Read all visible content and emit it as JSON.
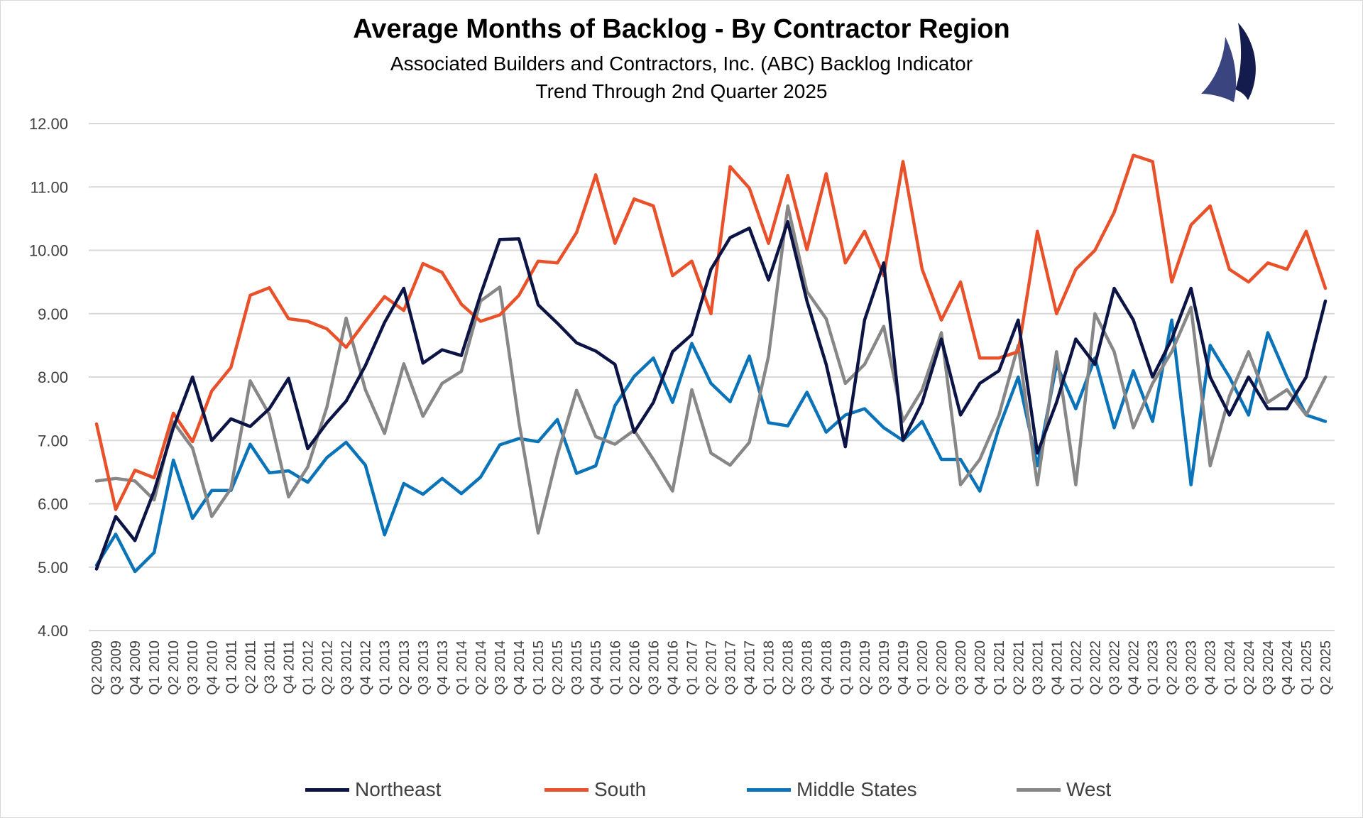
{
  "chart_data": {
    "type": "line",
    "title": "Average Months of Backlog - By Contractor Region",
    "subtitle_lines": [
      "Associated Builders and Contractors, Inc. (ABC) Backlog Indicator",
      "Trend Through 2nd Quarter 2025"
    ],
    "xlabel": "",
    "ylabel": "",
    "ylim": [
      4,
      12
    ],
    "yticks": [
      "4.00",
      "5.00",
      "6.00",
      "7.00",
      "8.00",
      "9.00",
      "10.00",
      "11.00",
      "12.00"
    ],
    "grid": true,
    "legend_position": "bottom",
    "categories": [
      "Q2 2009",
      "Q3 2009",
      "Q4 2009",
      "Q1 2010",
      "Q2 2010",
      "Q3 2010",
      "Q4 2010",
      "Q1 2011",
      "Q2 2011",
      "Q3 2011",
      "Q4 2011",
      "Q1 2012",
      "Q2 2012",
      "Q3 2012",
      "Q4 2012",
      "Q1 2013",
      "Q2 2013",
      "Q3 2013",
      "Q4 2013",
      "Q1 2014",
      "Q2 2014",
      "Q3 2014",
      "Q4 2014",
      "Q1 2015",
      "Q2 2015",
      "Q3 2015",
      "Q4 2015",
      "Q1 2016",
      "Q2 2016",
      "Q3 2016",
      "Q4 2016",
      "Q1 2017",
      "Q2 2017",
      "Q3 2017",
      "Q4 2017",
      "Q1 2018",
      "Q2 2018",
      "Q3 2018",
      "Q4 2018",
      "Q1 2019",
      "Q2 2019",
      "Q3 2019",
      "Q4 2019",
      "Q1 2020",
      "Q2 2020",
      "Q3 2020",
      "Q4 2020",
      "Q1 2021",
      "Q2 2021",
      "Q3 2021",
      "Q4 2021",
      "Q1 2022",
      "Q2 2022",
      "Q3 2022",
      "Q4 2022",
      "Q1 2023",
      "Q2 2023",
      "Q3 2023",
      "Q4 2023",
      "Q1 2024",
      "Q2 2024",
      "Q3 2024",
      "Q4 2024",
      "Q1 2025",
      "Q2 2025"
    ],
    "series": [
      {
        "name": "Northeast",
        "color": "#0c1445",
        "values": [
          4.97,
          5.8,
          5.42,
          6.2,
          7.2,
          8.0,
          7.0,
          7.34,
          7.22,
          7.5,
          7.98,
          6.87,
          7.28,
          7.62,
          8.18,
          8.86,
          9.4,
          8.22,
          8.43,
          8.34,
          9.3,
          10.17,
          10.18,
          9.14,
          8.85,
          8.54,
          8.41,
          8.2,
          7.13,
          7.6,
          8.4,
          8.67,
          9.7,
          10.2,
          10.35,
          9.53,
          10.45,
          9.2,
          8.2,
          6.9,
          8.9,
          9.8,
          7.0,
          7.6,
          8.6,
          7.4,
          7.9,
          8.1,
          8.9,
          6.8,
          7.6,
          8.6,
          8.2,
          9.4,
          8.9,
          8.0,
          8.6,
          9.4,
          8.0,
          7.4,
          8.0,
          7.5,
          7.5,
          8.0,
          9.2
        ]
      },
      {
        "name": "South",
        "color": "#e8512a",
        "values": [
          7.26,
          5.91,
          6.53,
          6.41,
          7.43,
          6.98,
          7.78,
          8.15,
          9.29,
          9.41,
          8.92,
          8.88,
          8.76,
          8.47,
          8.88,
          9.27,
          9.05,
          9.79,
          9.65,
          9.15,
          8.88,
          8.98,
          9.29,
          9.83,
          9.8,
          10.28,
          11.19,
          10.11,
          10.81,
          10.7,
          9.6,
          9.83,
          9.0,
          11.32,
          10.98,
          10.11,
          11.18,
          10.01,
          11.21,
          9.8,
          10.3,
          9.6,
          11.4,
          9.7,
          8.9,
          9.5,
          8.3,
          8.3,
          8.4,
          10.3,
          9.0,
          9.7,
          10.0,
          10.6,
          11.5,
          11.4,
          9.5,
          10.4,
          10.7,
          9.7,
          9.5,
          9.8,
          9.7,
          10.3,
          9.4
        ]
      },
      {
        "name": "Middle States",
        "color": "#0b73b8",
        "values": [
          5.03,
          5.52,
          4.93,
          5.23,
          6.69,
          5.77,
          6.21,
          6.21,
          6.94,
          6.49,
          6.52,
          6.34,
          6.73,
          6.97,
          6.61,
          5.51,
          6.32,
          6.15,
          6.4,
          6.16,
          6.42,
          6.93,
          7.03,
          6.98,
          7.33,
          6.48,
          6.6,
          7.55,
          8.01,
          8.3,
          7.6,
          8.53,
          7.9,
          7.61,
          8.33,
          7.28,
          7.23,
          7.76,
          7.13,
          7.4,
          7.5,
          7.2,
          7.0,
          7.3,
          6.7,
          6.7,
          6.2,
          7.2,
          8.0,
          6.6,
          8.2,
          7.5,
          8.3,
          7.2,
          8.1,
          7.3,
          8.9,
          6.3,
          8.5,
          8.0,
          7.4,
          8.7,
          8.0,
          7.4,
          7.3
        ]
      },
      {
        "name": "West",
        "color": "#878787",
        "values": [
          6.36,
          6.4,
          6.36,
          6.06,
          7.29,
          6.88,
          5.8,
          6.24,
          7.94,
          7.41,
          6.11,
          6.58,
          7.53,
          8.93,
          7.8,
          7.11,
          8.21,
          7.38,
          7.9,
          8.09,
          9.2,
          9.42,
          7.29,
          5.54,
          6.77,
          7.79,
          7.06,
          6.94,
          7.16,
          6.7,
          6.2,
          7.8,
          6.8,
          6.61,
          6.97,
          8.33,
          10.7,
          9.35,
          8.92,
          7.9,
          8.2,
          8.8,
          7.3,
          7.8,
          8.7,
          6.3,
          6.7,
          7.4,
          8.5,
          6.3,
          8.4,
          6.3,
          9.0,
          8.4,
          7.2,
          7.9,
          8.4,
          9.1,
          6.6,
          7.7,
          8.4,
          7.6,
          7.8,
          7.4,
          8.0
        ]
      }
    ]
  },
  "logo": {
    "name": "ABC sail logo",
    "colors": [
      "#3a4580",
      "#141c4d"
    ]
  }
}
